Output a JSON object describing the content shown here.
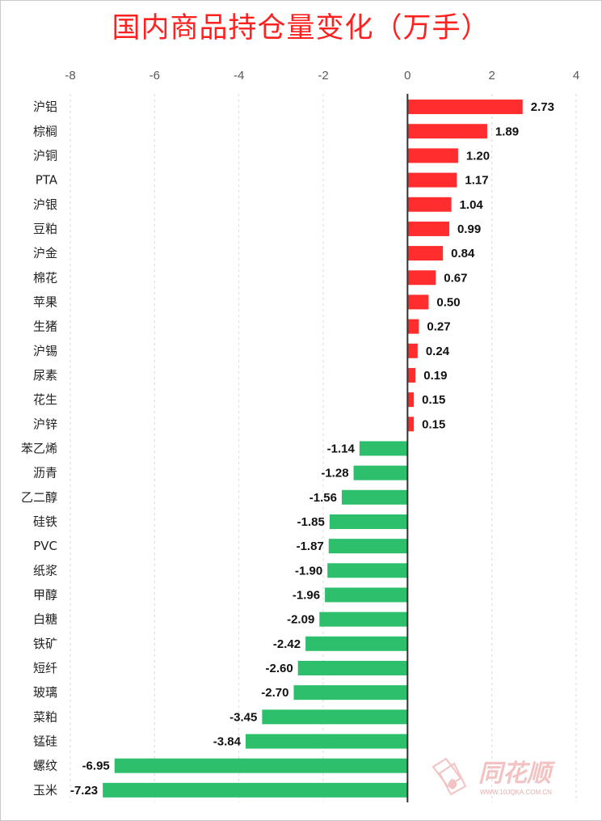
{
  "title": "国内商品持仓量变化（万手）",
  "colors": {
    "positive": "#ff2d2d",
    "negative": "#2dbf6c",
    "title": "#ff2020",
    "axis": "#333333",
    "grid": "#d9d9d9"
  },
  "watermark": {
    "brand": "同花顺",
    "url": "WWW.10JQKA.COM.CN"
  },
  "chart_data": {
    "type": "bar",
    "orientation": "horizontal",
    "title": "国内商品持仓量变化（万手）",
    "xlim": [
      -8,
      4
    ],
    "xticks": [
      -8,
      -6,
      -4,
      -2,
      0,
      2,
      4
    ],
    "xtick_labels": [
      "-8",
      "-6",
      "-4",
      "-2",
      "0",
      "2",
      "4"
    ],
    "grid": "vertical dashed",
    "legend": "none",
    "categories": [
      "沪铝",
      "棕榈",
      "沪铜",
      "PTA",
      "沪银",
      "豆粕",
      "沪金",
      "棉花",
      "苹果",
      "生猪",
      "沪锡",
      "尿素",
      "花生",
      "沪锌",
      "苯乙烯",
      "沥青",
      "乙二醇",
      "硅铁",
      "PVC",
      "纸浆",
      "甲醇",
      "白糖",
      "铁矿",
      "短纤",
      "玻璃",
      "菜粕",
      "锰硅",
      "螺纹",
      "玉米"
    ],
    "values": [
      2.73,
      1.89,
      1.2,
      1.17,
      1.04,
      0.99,
      0.84,
      0.67,
      0.5,
      0.27,
      0.24,
      0.19,
      0.15,
      0.15,
      -1.14,
      -1.28,
      -1.56,
      -1.85,
      -1.87,
      -1.9,
      -1.96,
      -2.09,
      -2.42,
      -2.6,
      -2.7,
      -3.45,
      -3.84,
      -6.95,
      -7.23
    ],
    "value_labels": [
      "2.73",
      "1.89",
      "1.20",
      "1.17",
      "1.04",
      "0.99",
      "0.84",
      "0.67",
      "0.50",
      "0.27",
      "0.24",
      "0.19",
      "0.15",
      "0.15",
      "-1.14",
      "-1.28",
      "-1.56",
      "-1.85",
      "-1.87",
      "-1.90",
      "-1.96",
      "-2.09",
      "-2.42",
      "-2.60",
      "-2.70",
      "-3.45",
      "-3.84",
      "-6.95",
      "-7.23"
    ]
  }
}
